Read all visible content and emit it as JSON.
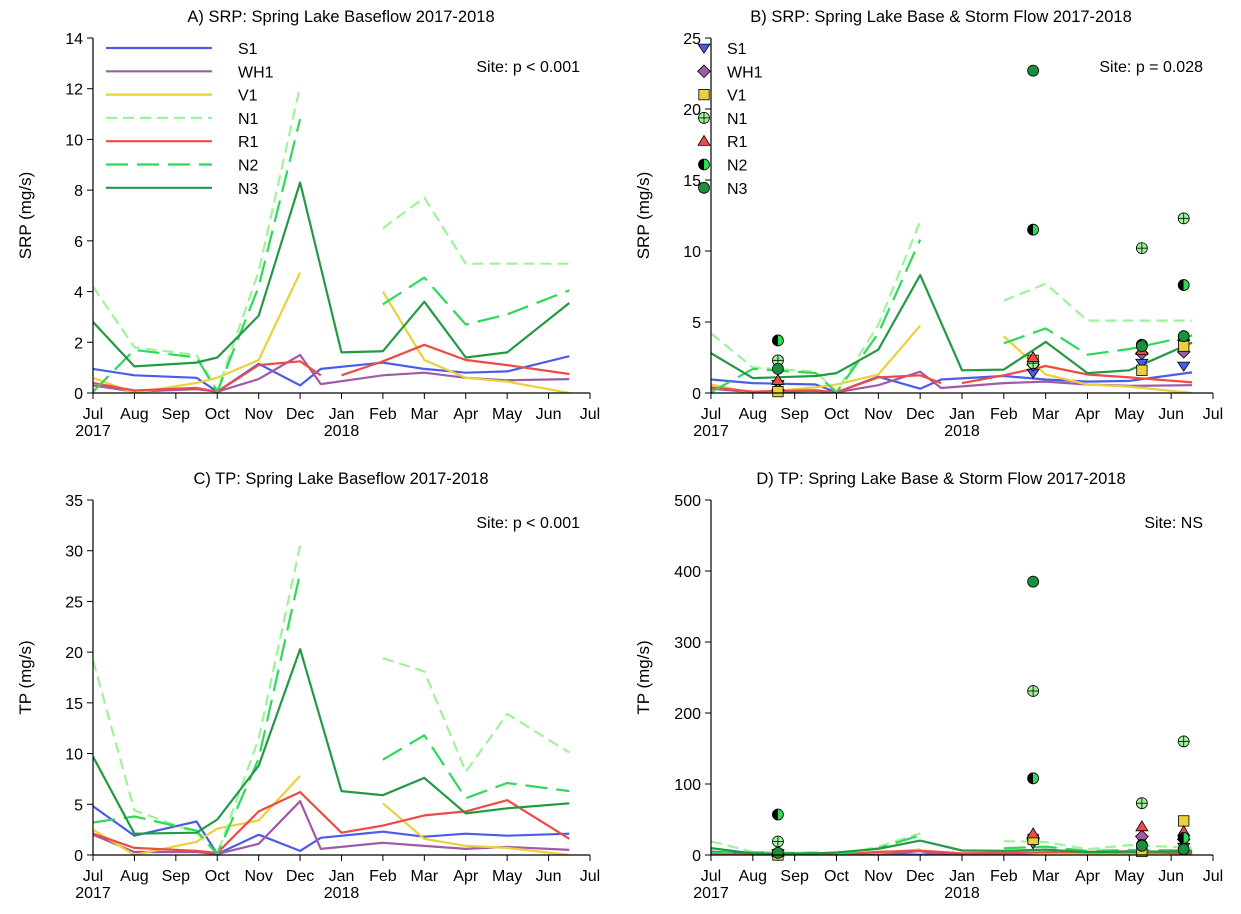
{
  "colors": {
    "S1": "#4a5de8",
    "WH1": "#a05aa8",
    "V1": "#ead13a",
    "N1": "#9ef39a",
    "R1": "#ef4b45",
    "N2": "#2fd85a",
    "N3": "#229a44",
    "N3_marker": "#1c8f3e"
  },
  "chart_data": [
    {
      "id": "A",
      "type": "line",
      "title": "A) SRP: Spring Lake Baseflow 2017-2018",
      "ylabel": "SRP (mg/s)",
      "xlabel": "",
      "ylim": [
        0,
        14
      ],
      "yticks": [
        0,
        2,
        4,
        6,
        8,
        10,
        12,
        14
      ],
      "xlim": [
        0,
        12
      ],
      "xticks": [
        {
          "x": 0,
          "label": "Jul",
          "sub": "2017"
        },
        {
          "x": 1,
          "label": "Aug"
        },
        {
          "x": 2,
          "label": "Sep"
        },
        {
          "x": 3,
          "label": "Oct"
        },
        {
          "x": 4,
          "label": "Nov"
        },
        {
          "x": 5,
          "label": "Dec"
        },
        {
          "x": 6,
          "label": "Jan",
          "sub": "2018"
        },
        {
          "x": 7,
          "label": "Feb"
        },
        {
          "x": 8,
          "label": "Mar"
        },
        {
          "x": 9,
          "label": "Apr"
        },
        {
          "x": 10,
          "label": "May"
        },
        {
          "x": 11,
          "label": "Jun"
        },
        {
          "x": 12,
          "label": "Jul"
        }
      ],
      "annotation": "Site: p < 0.001",
      "legend": {
        "position": "top-left",
        "style": "lines"
      },
      "series": [
        {
          "name": "S1",
          "style": "solid",
          "x": [
            0,
            0.7,
            1.7,
            2.3,
            3.2,
            3.7,
            4.6,
            5.1,
            5.6,
            6.3,
            7.3,
            8.3,
            9.3,
            10.3,
            11.3
          ],
          "y": [
            1.0,
            0.7,
            0.6,
            0.1,
            1.2,
            0.3,
            1.0,
            1.2,
            0.9,
            0.8,
            1.5,
            1.0,
            0.9,
            0.9,
            1.5
          ],
          "_note": "placeholder"
        }
      ]
    }
  ]
}
